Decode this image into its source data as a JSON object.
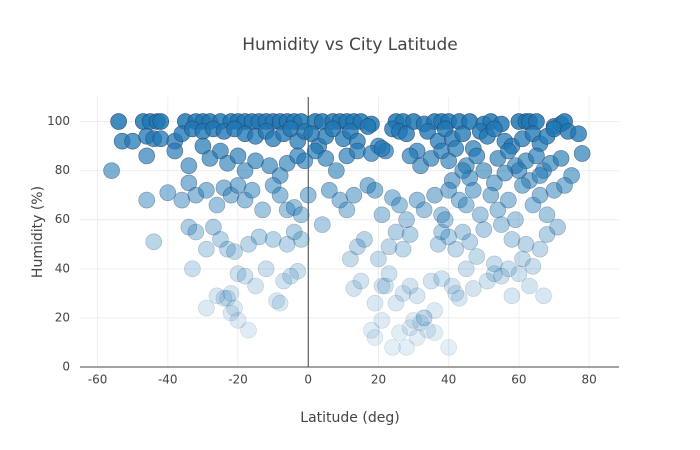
{
  "chart_data": {
    "type": "scatter",
    "title": "Humidity vs City Latitude",
    "x_label": "Latitude (deg)",
    "y_label": "Humidity (%)",
    "x": [
      -54,
      -47,
      -45,
      -43,
      -42,
      -35,
      -32,
      -30,
      -28,
      -25,
      -22,
      -20,
      -18,
      -16,
      -14,
      -12,
      -10,
      -8,
      -6,
      -4,
      -2,
      2,
      4,
      7,
      9,
      11,
      13,
      15,
      18,
      25,
      27,
      30,
      33,
      36,
      38,
      40,
      43,
      46,
      50,
      52,
      55,
      60,
      62,
      63,
      65,
      70,
      72,
      73,
      -53,
      -50,
      -46,
      -44,
      -42,
      -38,
      -36,
      -33,
      -30,
      -27,
      -24,
      -21,
      -18,
      -15,
      -12,
      -10,
      -7,
      -5,
      -3,
      -1,
      1,
      3,
      5,
      7,
      10,
      12,
      14,
      17,
      20,
      22,
      24,
      26,
      28,
      31,
      34,
      37,
      39,
      41,
      44,
      47,
      49,
      51,
      53,
      56,
      58,
      61,
      64,
      66,
      68,
      70,
      74,
      77,
      -56,
      -46,
      -38,
      -34,
      -30,
      -28,
      -25,
      -23,
      -20,
      -18,
      -15,
      -11,
      -8,
      -6,
      -3,
      -1,
      2,
      5,
      8,
      11,
      14,
      18,
      21,
      29,
      32,
      35,
      38,
      40,
      42,
      45,
      48,
      50,
      54,
      57,
      59,
      62,
      65,
      67,
      69,
      72,
      78,
      75,
      60,
      63,
      66,
      56,
      53,
      46,
      44,
      41,
      -46,
      -40,
      -36,
      -34,
      -32,
      -29,
      -26,
      -24,
      -22,
      -20,
      -18,
      -16,
      -13,
      -10,
      -8,
      -6,
      -4,
      -2,
      0,
      4,
      6,
      9,
      11,
      13,
      17,
      19,
      21,
      24,
      26,
      28,
      31,
      33,
      36,
      38,
      40,
      43,
      45,
      47,
      49,
      52,
      54,
      57,
      59,
      61,
      64,
      66,
      68,
      70,
      73,
      39,
      -44,
      -34,
      -32,
      -29,
      -27,
      -25,
      -23,
      -21,
      -17,
      -14,
      -10,
      -6,
      -4,
      -2,
      12,
      14,
      16,
      20,
      23,
      25,
      27,
      29,
      37,
      38,
      40,
      42,
      44,
      46,
      48,
      50,
      53,
      55,
      58,
      61,
      62,
      64,
      66,
      68,
      71,
      57,
      -33,
      -29,
      -24,
      -22,
      -20,
      -18,
      -15,
      -12,
      -9,
      -7,
      -5,
      -3,
      13,
      15,
      19,
      21,
      23,
      25,
      27,
      29,
      31,
      33,
      35,
      38,
      41,
      43,
      45,
      47,
      51,
      55,
      58,
      60,
      63,
      67,
      53,
      36,
      42,
      -26,
      -23,
      -21,
      -22,
      -20,
      -17,
      -8,
      18,
      19,
      21,
      24,
      26,
      28,
      29,
      31,
      32,
      34,
      36,
      40,
      22,
      33,
      30
    ],
    "values": [
      100,
      100,
      100,
      100,
      100,
      100,
      100,
      100,
      100,
      100,
      100,
      100,
      100,
      100,
      100,
      100,
      100,
      100,
      100,
      100,
      100,
      100,
      100,
      100,
      100,
      100,
      100,
      100,
      99,
      100,
      100,
      100,
      99,
      100,
      100,
      100,
      100,
      100,
      99,
      100,
      99,
      100,
      100,
      100,
      100,
      98,
      99,
      100,
      92,
      92,
      94,
      93,
      93,
      92,
      95,
      97,
      96,
      97,
      96,
      97,
      95,
      94,
      96,
      93,
      95,
      97,
      92,
      96,
      95,
      90,
      94,
      97,
      93,
      96,
      92,
      98,
      90,
      88,
      97,
      96,
      95,
      88,
      96,
      92,
      97,
      93,
      95,
      89,
      96,
      94,
      97,
      92,
      90,
      93,
      95,
      91,
      94,
      97,
      96,
      95,
      80,
      86,
      88,
      82,
      90,
      85,
      88,
      83,
      86,
      80,
      84,
      82,
      78,
      83,
      86,
      84,
      88,
      85,
      80,
      86,
      88,
      87,
      89,
      86,
      82,
      85,
      88,
      84,
      89,
      82,
      86,
      80,
      85,
      88,
      82,
      84,
      86,
      80,
      83,
      85,
      87,
      78,
      80,
      76,
      78,
      79,
      75,
      77,
      80,
      76,
      68,
      71,
      68,
      75,
      70,
      72,
      66,
      73,
      70,
      74,
      68,
      72,
      64,
      74,
      70,
      64,
      65,
      62,
      70,
      58,
      72,
      68,
      64,
      70,
      74,
      72,
      62,
      69,
      66,
      60,
      68,
      64,
      70,
      62,
      72,
      68,
      66,
      72,
      62,
      70,
      64,
      68,
      60,
      74,
      66,
      70,
      62,
      72,
      74,
      60,
      51,
      57,
      55,
      48,
      57,
      52,
      48,
      47,
      50,
      53,
      52,
      50,
      55,
      52,
      44,
      49,
      52,
      44,
      49,
      55,
      48,
      54,
      50,
      55,
      53,
      48,
      55,
      51,
      45,
      56,
      42,
      58,
      52,
      44,
      50,
      41,
      48,
      54,
      57,
      40,
      40,
      24,
      28,
      30,
      38,
      37,
      33,
      40,
      27,
      35,
      37,
      39,
      32,
      35,
      26,
      33,
      38,
      26,
      30,
      33,
      29,
      20,
      35,
      36,
      33,
      28,
      40,
      32,
      35,
      37,
      29,
      38,
      33,
      29,
      38,
      23,
      30,
      29,
      28,
      24,
      22,
      19,
      15,
      26,
      15,
      12,
      19,
      8,
      14,
      8,
      16,
      12,
      18,
      15,
      14,
      8,
      33,
      20,
      19
    ],
    "color": "#1f77b4",
    "edgecolor": "#2a3f5f",
    "xlim": [
      -65,
      88.5
    ],
    "ylim": [
      0,
      110
    ],
    "xticks": [
      -60,
      -40,
      -20,
      0,
      20,
      40,
      60,
      80
    ],
    "yticks": [
      0,
      20,
      40,
      60,
      80,
      100
    ],
    "grid": true
  }
}
